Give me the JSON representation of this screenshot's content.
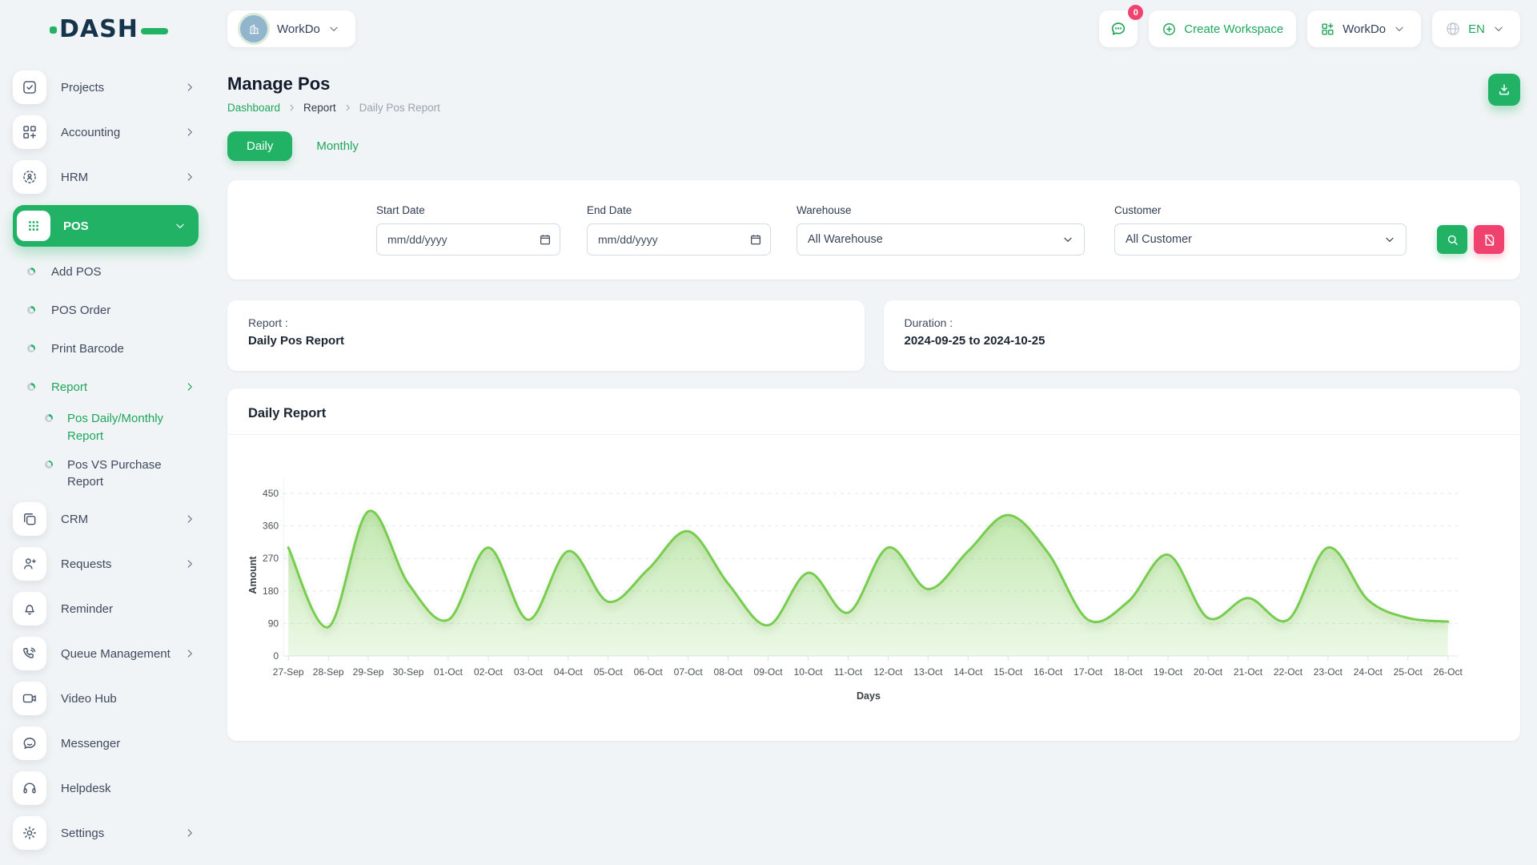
{
  "brand": {
    "name": "DASH"
  },
  "header": {
    "workspace_label": "WorkDo",
    "messages_badge": "0",
    "create_workspace_label": "Create Workspace",
    "workdo_menu_label": "WorkDo",
    "language": "EN"
  },
  "sidebar": {
    "items": [
      {
        "label": "Projects"
      },
      {
        "label": "Accounting"
      },
      {
        "label": "HRM"
      },
      {
        "label": "POS"
      },
      {
        "label": "Add POS"
      },
      {
        "label": "POS Order"
      },
      {
        "label": "Print Barcode"
      },
      {
        "label": "Report"
      },
      {
        "label": "Pos Daily/Monthly Report"
      },
      {
        "label": "Pos VS Purchase Report"
      },
      {
        "label": "CRM"
      },
      {
        "label": "Requests"
      },
      {
        "label": "Reminder"
      },
      {
        "label": "Queue Management"
      },
      {
        "label": "Video Hub"
      },
      {
        "label": "Messenger"
      },
      {
        "label": "Helpdesk"
      },
      {
        "label": "Settings"
      }
    ]
  },
  "page": {
    "title": "Manage Pos",
    "breadcrumb": {
      "home": "Dashboard",
      "section": "Report",
      "current": "Daily Pos Report"
    },
    "tabs": {
      "daily": "Daily",
      "monthly": "Monthly"
    }
  },
  "filters": {
    "start_date": {
      "label": "Start Date",
      "value": "",
      "placeholder": "mm/dd/yyyy"
    },
    "end_date": {
      "label": "End Date",
      "value": "",
      "placeholder": "mm/dd/yyyy"
    },
    "warehouse": {
      "label": "Warehouse",
      "value": "All Warehouse"
    },
    "customer": {
      "label": "Customer",
      "value": "All Customer"
    }
  },
  "summary": {
    "report_label": "Report :",
    "report_value": "Daily Pos Report",
    "duration_label": "Duration :",
    "duration_value": "2024-09-25 to 2024-10-25"
  },
  "chart_card": {
    "title": "Daily Report"
  },
  "chart_data": {
    "type": "area",
    "title": "Daily Report",
    "xlabel": "Days",
    "ylabel": "Amount",
    "ylim": [
      0,
      450
    ],
    "yticks": [
      0,
      90,
      180,
      270,
      360,
      450
    ],
    "grid": "dashed-horizontal",
    "legend": "none",
    "line_color": "#77cd4f",
    "fill_color": "#77cd4f",
    "categories": [
      "27-Sep",
      "28-Sep",
      "29-Sep",
      "30-Sep",
      "01-Oct",
      "02-Oct",
      "03-Oct",
      "04-Oct",
      "05-Oct",
      "06-Oct",
      "07-Oct",
      "08-Oct",
      "09-Oct",
      "10-Oct",
      "11-Oct",
      "12-Oct",
      "13-Oct",
      "14-Oct",
      "15-Oct",
      "16-Oct",
      "17-Oct",
      "18-Oct",
      "19-Oct",
      "20-Oct",
      "21-Oct",
      "22-Oct",
      "23-Oct",
      "24-Oct",
      "25-Oct",
      "26-Oct"
    ],
    "values": [
      300,
      80,
      400,
      200,
      100,
      300,
      100,
      290,
      150,
      240,
      345,
      200,
      85,
      230,
      120,
      300,
      185,
      290,
      390,
      285,
      100,
      150,
      280,
      105,
      160,
      100,
      300,
      155,
      105,
      95
    ]
  },
  "colors": {
    "primary_green": "#22b266",
    "link_green": "#1fa65a",
    "danger_pink": "#f0426e",
    "chart_green": "#77cd4f",
    "page_bg": "#f1f4f6"
  }
}
